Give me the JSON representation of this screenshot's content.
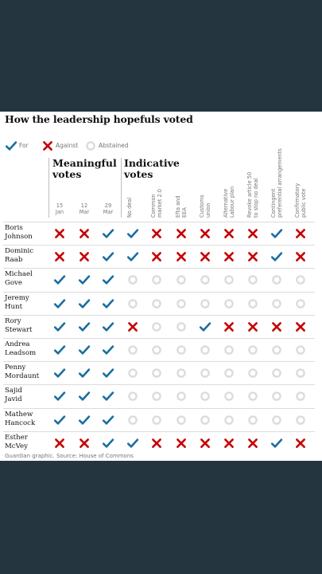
{
  "title": "How the leadership hopefuls voted",
  "legend": [
    {
      "symbol": "tick",
      "label": "For"
    },
    {
      "symbol": "cross",
      "label": "Against"
    },
    {
      "symbol": "circle",
      "label": "Abstained"
    }
  ],
  "groups": {
    "meaningful": [
      "Meaningful",
      "votes"
    ],
    "indicative": [
      "Indicative",
      "votes"
    ]
  },
  "meaningful_columns": [
    [
      "15",
      "Jan"
    ],
    [
      "12",
      "Mar"
    ],
    [
      "29",
      "Mar"
    ]
  ],
  "indicative_columns": [
    [
      "No deal"
    ],
    [
      "Common",
      "market 2.0"
    ],
    [
      "Efta and",
      "EEA"
    ],
    [
      "Customs",
      "union"
    ],
    [
      "Alternative",
      "Labour plan"
    ],
    [
      "Revoke article 50",
      "to stop no deal"
    ],
    [
      "Contingent",
      "preferential arrangements"
    ],
    [
      "Confirmatory",
      "public vote"
    ]
  ],
  "candidates": [
    {
      "name": [
        "Boris",
        "Johnson"
      ],
      "votes": [
        "X",
        "X",
        "T",
        "T",
        "X",
        "X",
        "X",
        "X",
        "X",
        "T",
        "X"
      ]
    },
    {
      "name": [
        "Dominic",
        "Raab"
      ],
      "votes": [
        "X",
        "X",
        "T",
        "T",
        "X",
        "X",
        "X",
        "X",
        "X",
        "T",
        "X"
      ]
    },
    {
      "name": [
        "Michael",
        "Gove"
      ],
      "votes": [
        "T",
        "T",
        "T",
        "O",
        "O",
        "O",
        "O",
        "O",
        "O",
        "O",
        "O"
      ]
    },
    {
      "name": [
        "Jeremy",
        "Hunt"
      ],
      "votes": [
        "T",
        "T",
        "T",
        "O",
        "O",
        "O",
        "O",
        "O",
        "O",
        "O",
        "O"
      ]
    },
    {
      "name": [
        "Rory",
        "Stewart"
      ],
      "votes": [
        "T",
        "T",
        "T",
        "X",
        "O",
        "O",
        "T",
        "X",
        "X",
        "X",
        "X"
      ]
    },
    {
      "name": [
        "Andrea",
        "Leadsom"
      ],
      "votes": [
        "T",
        "T",
        "T",
        "O",
        "O",
        "O",
        "O",
        "O",
        "O",
        "O",
        "O"
      ]
    },
    {
      "name": [
        "Penny",
        "Mordaunt"
      ],
      "votes": [
        "T",
        "T",
        "T",
        "O",
        "O",
        "O",
        "O",
        "O",
        "O",
        "O",
        "O"
      ]
    },
    {
      "name": [
        "Sajid",
        "Javid"
      ],
      "votes": [
        "T",
        "T",
        "T",
        "O",
        "O",
        "O",
        "O",
        "O",
        "O",
        "O",
        "O"
      ]
    },
    {
      "name": [
        "Mathew",
        "Hancock"
      ],
      "votes": [
        "T",
        "T",
        "T",
        "O",
        "O",
        "O",
        "O",
        "O",
        "O",
        "O",
        "O"
      ]
    },
    {
      "name": [
        "Esther",
        "McVey"
      ],
      "votes": [
        "X",
        "X",
        "T",
        "T",
        "X",
        "X",
        "X",
        "X",
        "X",
        "T",
        "X"
      ]
    }
  ],
  "footer": "Guardian graphic. Source: House of Commons",
  "colors": {
    "tick": "#1a6ea0",
    "cross": "#c70000",
    "abstain": "#dcdcdc",
    "background": "#253540"
  }
}
